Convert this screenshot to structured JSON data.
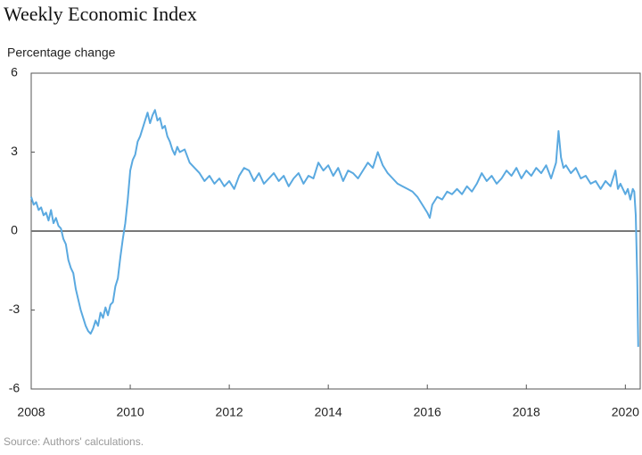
{
  "chart_data": {
    "type": "line",
    "title": "Weekly Economic Index",
    "y_label": "Percentage change",
    "source": "Source: Authors' calculations.",
    "x": [
      2008.0,
      2008.05,
      2008.1,
      2008.15,
      2008.2,
      2008.25,
      2008.3,
      2008.35,
      2008.4,
      2008.45,
      2008.5,
      2008.55,
      2008.6,
      2008.65,
      2008.7,
      2008.75,
      2008.8,
      2008.85,
      2008.9,
      2008.95,
      2009.0,
      2009.05,
      2009.1,
      2009.15,
      2009.2,
      2009.25,
      2009.3,
      2009.35,
      2009.4,
      2009.45,
      2009.5,
      2009.55,
      2009.6,
      2009.65,
      2009.7,
      2009.75,
      2009.8,
      2009.85,
      2009.9,
      2009.95,
      2010.0,
      2010.05,
      2010.1,
      2010.15,
      2010.2,
      2010.25,
      2010.3,
      2010.35,
      2010.4,
      2010.45,
      2010.5,
      2010.55,
      2010.6,
      2010.65,
      2010.7,
      2010.75,
      2010.8,
      2010.85,
      2010.9,
      2010.95,
      2011.0,
      2011.1,
      2011.2,
      2011.3,
      2011.4,
      2011.5,
      2011.6,
      2011.7,
      2011.8,
      2011.9,
      2012.0,
      2012.1,
      2012.2,
      2012.3,
      2012.4,
      2012.5,
      2012.6,
      2012.7,
      2012.8,
      2012.9,
      2013.0,
      2013.1,
      2013.2,
      2013.3,
      2013.4,
      2013.5,
      2013.6,
      2013.7,
      2013.8,
      2013.9,
      2014.0,
      2014.1,
      2014.2,
      2014.3,
      2014.4,
      2014.5,
      2014.6,
      2014.7,
      2014.8,
      2014.9,
      2015.0,
      2015.1,
      2015.2,
      2015.3,
      2015.4,
      2015.5,
      2015.6,
      2015.7,
      2015.8,
      2015.9,
      2016.0,
      2016.05,
      2016.1,
      2016.2,
      2016.3,
      2016.4,
      2016.5,
      2016.6,
      2016.7,
      2016.8,
      2016.9,
      2017.0,
      2017.1,
      2017.2,
      2017.3,
      2017.4,
      2017.5,
      2017.6,
      2017.7,
      2017.8,
      2017.9,
      2018.0,
      2018.1,
      2018.2,
      2018.3,
      2018.4,
      2018.5,
      2018.6,
      2018.65,
      2018.7,
      2018.75,
      2018.8,
      2018.9,
      2019.0,
      2019.1,
      2019.2,
      2019.3,
      2019.4,
      2019.5,
      2019.6,
      2019.7,
      2019.8,
      2019.85,
      2019.9,
      2020.0,
      2020.05,
      2020.1,
      2020.15,
      2020.18,
      2020.21,
      2020.24,
      2020.26
    ],
    "values": [
      1.3,
      1.0,
      1.1,
      0.8,
      0.9,
      0.6,
      0.7,
      0.4,
      0.8,
      0.3,
      0.5,
      0.2,
      0.1,
      -0.3,
      -0.5,
      -1.1,
      -1.4,
      -1.6,
      -2.2,
      -2.6,
      -3.0,
      -3.3,
      -3.6,
      -3.8,
      -3.9,
      -3.7,
      -3.4,
      -3.6,
      -3.1,
      -3.3,
      -2.9,
      -3.2,
      -2.8,
      -2.7,
      -2.1,
      -1.8,
      -1.0,
      -0.3,
      0.3,
      1.2,
      2.3,
      2.7,
      2.9,
      3.4,
      3.6,
      3.9,
      4.2,
      4.5,
      4.1,
      4.4,
      4.6,
      4.2,
      4.3,
      3.9,
      4.0,
      3.6,
      3.4,
      3.1,
      2.9,
      3.2,
      3.0,
      3.1,
      2.6,
      2.4,
      2.2,
      1.9,
      2.1,
      1.8,
      2.0,
      1.7,
      1.9,
      1.6,
      2.1,
      2.4,
      2.3,
      1.9,
      2.2,
      1.8,
      2.0,
      2.2,
      1.9,
      2.1,
      1.7,
      2.0,
      2.2,
      1.8,
      2.1,
      2.0,
      2.6,
      2.3,
      2.5,
      2.1,
      2.4,
      1.9,
      2.3,
      2.2,
      2.0,
      2.3,
      2.6,
      2.4,
      3.0,
      2.5,
      2.2,
      2.0,
      1.8,
      1.7,
      1.6,
      1.5,
      1.3,
      1.0,
      0.7,
      0.5,
      1.0,
      1.3,
      1.2,
      1.5,
      1.4,
      1.6,
      1.4,
      1.7,
      1.5,
      1.8,
      2.2,
      1.9,
      2.1,
      1.8,
      2.0,
      2.3,
      2.1,
      2.4,
      2.0,
      2.3,
      2.1,
      2.4,
      2.2,
      2.5,
      2.0,
      2.6,
      3.8,
      2.8,
      2.4,
      2.5,
      2.2,
      2.4,
      2.0,
      2.1,
      1.8,
      1.9,
      1.6,
      1.9,
      1.7,
      2.3,
      1.6,
      1.8,
      1.4,
      1.6,
      1.2,
      1.6,
      1.5,
      0.6,
      -1.8,
      -4.4
    ],
    "color": "#5aa9e0",
    "xlim": [
      2008,
      2020.3
    ],
    "ylim": [
      -6,
      6
    ],
    "xticks": [
      2008,
      2010,
      2012,
      2014,
      2016,
      2018,
      2020
    ],
    "yticks": [
      6,
      3,
      0,
      -3,
      -6
    ],
    "hline": 0,
    "grid": false
  }
}
